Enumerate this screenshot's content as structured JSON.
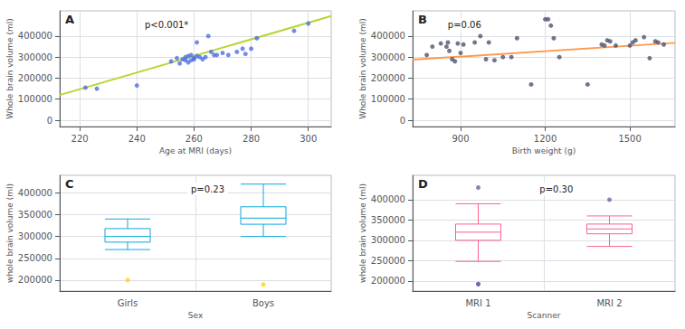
{
  "chart_data": [
    {
      "type": "scatter",
      "title": "A",
      "annotation": "p<0.001*",
      "xlabel": "Age at MRI (days)",
      "ylabel": "Whole brain volume (ml)",
      "xlim": [
        213,
        308
      ],
      "ylim": [
        -30000,
        520000
      ],
      "xticks": [
        220,
        240,
        260,
        280,
        300
      ],
      "yticks": [
        0,
        100000,
        200000,
        300000,
        400000
      ],
      "grid": true,
      "series": [
        {
          "type": "scatter",
          "x": [
            222,
            226,
            240,
            252,
            254,
            255,
            256,
            257,
            257,
            258,
            258,
            259,
            259,
            260,
            260,
            261,
            261,
            262,
            263,
            264,
            265,
            266,
            267,
            268,
            270,
            272,
            275,
            277,
            278,
            280,
            282,
            295,
            300
          ],
          "values": [
            155000,
            150000,
            165000,
            280000,
            295000,
            270000,
            290000,
            300000,
            285000,
            275000,
            305000,
            310000,
            285000,
            290000,
            295000,
            370000,
            305000,
            300000,
            290000,
            300000,
            400000,
            325000,
            310000,
            310000,
            320000,
            310000,
            325000,
            340000,
            315000,
            340000,
            390000,
            425000,
            460000
          ]
        },
        {
          "type": "line",
          "x": [
            213,
            308
          ],
          "values": [
            120000,
            495000
          ]
        }
      ]
    },
    {
      "type": "scatter",
      "title": "B",
      "annotation": "p=0.06",
      "xlabel": "Birth weight (g)",
      "ylabel": "Whole brain volume (ml)",
      "xlim": [
        730,
        1660
      ],
      "ylim": [
        -30000,
        520000
      ],
      "xticks": [
        900,
        1200,
        1500
      ],
      "yticks": [
        0,
        100000,
        200000,
        300000,
        400000
      ],
      "grid": true,
      "series": [
        {
          "type": "scatter",
          "x": [
            780,
            800,
            830,
            850,
            855,
            860,
            870,
            880,
            890,
            900,
            910,
            950,
            970,
            990,
            1000,
            1020,
            1050,
            1080,
            1100,
            1150,
            1200,
            1210,
            1220,
            1230,
            1250,
            1350,
            1400,
            1410,
            1420,
            1430,
            1450,
            1500,
            1510,
            1520,
            1550,
            1570,
            1590,
            1600,
            1620
          ],
          "values": [
            310000,
            350000,
            365000,
            350000,
            370000,
            330000,
            290000,
            280000,
            365000,
            320000,
            360000,
            370000,
            400000,
            290000,
            370000,
            285000,
            300000,
            300000,
            390000,
            170000,
            480000,
            480000,
            450000,
            390000,
            300000,
            170000,
            360000,
            355000,
            380000,
            375000,
            355000,
            355000,
            370000,
            380000,
            395000,
            295000,
            375000,
            370000,
            360000
          ]
        },
        {
          "type": "line",
          "x": [
            730,
            1660
          ],
          "values": [
            288000,
            368000
          ]
        }
      ]
    },
    {
      "type": "box",
      "title": "C",
      "annotation": "p=0.23",
      "xlabel": "Sex",
      "ylabel": "whole brain volume (ml)",
      "categories": [
        "Girls",
        "Boys"
      ],
      "ylim": [
        175000,
        440000
      ],
      "yticks": [
        200000,
        250000,
        300000,
        350000,
        400000
      ],
      "grid": true,
      "boxes": [
        {
          "whislo": 270000,
          "q1": 287000,
          "median": 300000,
          "q3": 318000,
          "whishi": 340000,
          "fliers": [
            200000
          ]
        },
        {
          "whislo": 300000,
          "q1": 328000,
          "median": 342000,
          "q3": 368000,
          "whishi": 420000,
          "fliers": [
            190000
          ]
        }
      ]
    },
    {
      "type": "box",
      "title": "D",
      "annotation": "p=0.30",
      "xlabel": "Scanner",
      "ylabel": "whole brain volume (ml)",
      "categories": [
        "MRI 1",
        "MRI 2"
      ],
      "ylim": [
        175000,
        460000
      ],
      "yticks": [
        200000,
        250000,
        300000,
        350000,
        400000
      ],
      "grid": true,
      "boxes": [
        {
          "whislo": 248000,
          "q1": 300000,
          "median": 320000,
          "q3": 340000,
          "whishi": 390000,
          "fliers": [
            192000,
            192000,
            430000
          ]
        },
        {
          "whislo": 285000,
          "q1": 316000,
          "median": 328000,
          "q3": 340000,
          "whishi": 360000,
          "fliers": [
            400000
          ]
        }
      ]
    }
  ]
}
